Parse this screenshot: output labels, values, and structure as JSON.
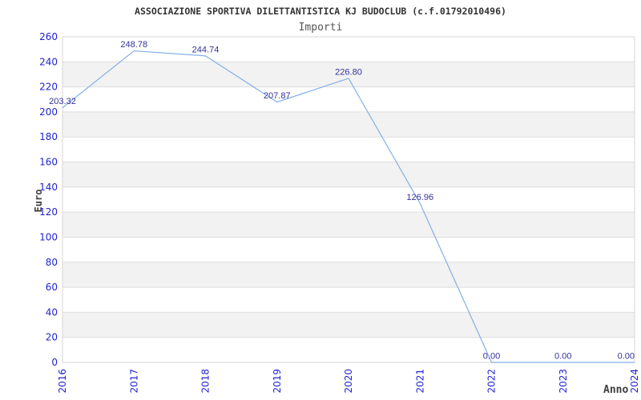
{
  "chart_data": {
    "type": "line",
    "title": "ASSOCIAZIONE SPORTIVA DILETTANTISTICA KJ BUDOCLUB (c.f.01792010496)",
    "subtitle": "Importi",
    "xlabel": "Anno",
    "ylabel": "Euro",
    "x": [
      "2016",
      "2017",
      "2018",
      "2019",
      "2020",
      "2021",
      "2022",
      "2023",
      "2024"
    ],
    "values": [
      203.32,
      248.78,
      244.74,
      207.87,
      226.8,
      126.96,
      0.0,
      0.0,
      0.0
    ],
    "point_labels": [
      "203.32",
      "248.78",
      "244.74",
      "207.87",
      "226.80",
      "126.96",
      "0.00",
      "0.00",
      "0.00"
    ],
    "ylim": [
      0,
      260
    ],
    "ytick_step": 20,
    "ytick_labels": [
      "0",
      "20",
      "40",
      "60",
      "80",
      "100",
      "120",
      "140",
      "160",
      "180",
      "200",
      "220",
      "240",
      "260"
    ],
    "grid": "horizontal, alternating shaded bands",
    "legend_position": "none",
    "marker": "none",
    "colors": {
      "line": "#82afe6",
      "tick_label": "#2222d0",
      "point_label": "#333399",
      "band_shade": "#f2f2f2",
      "gridline": "#dedede",
      "plot_border": "#d6d6d6",
      "title": "#333333",
      "subtitle": "#555555",
      "axis_name": "#3d3d3d",
      "background": "#ffffff"
    }
  }
}
